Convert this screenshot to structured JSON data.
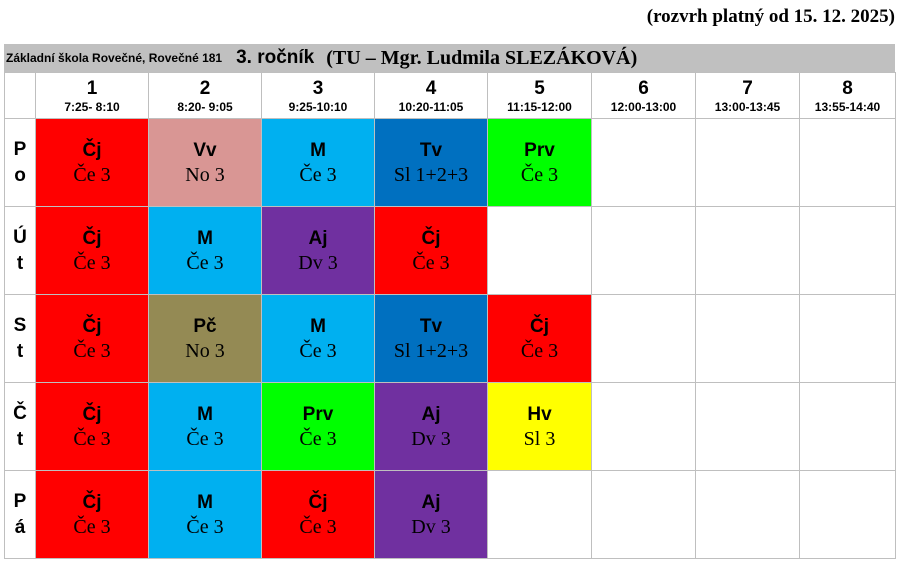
{
  "validity_note": "(rozvrh platný od 15. 12. 2025)",
  "header": {
    "school": "Základní škola Rovečné, Rovečné 181",
    "grade": "3. ročník",
    "teacher": "(TU – Mgr. Ludmila SLEZÁKOVÁ)"
  },
  "periods": [
    {
      "num": "1",
      "time": "7:25- 8:10"
    },
    {
      "num": "2",
      "time": "8:20- 9:05"
    },
    {
      "num": "3",
      "time": "9:25-10:10"
    },
    {
      "num": "4",
      "time": "10:20-11:05"
    },
    {
      "num": "5",
      "time": "11:15-12:00"
    },
    {
      "num": "6",
      "time": "12:00-13:00"
    },
    {
      "num": "7",
      "time": "13:00-13:45"
    },
    {
      "num": "8",
      "time": "13:55-14:40"
    }
  ],
  "colors": {
    "cj": "#ff0000",
    "vv": "#d99694",
    "m": "#00b0f0",
    "tv": "#0070c0",
    "prv": "#00ff00",
    "aj": "#7030a0",
    "pc": "#948a54",
    "hv": "#ffff00"
  },
  "days": [
    {
      "name": [
        "P",
        "o"
      ],
      "lessons": [
        {
          "subject": "Čj",
          "room": "Če 3",
          "color": "#ff0000"
        },
        {
          "subject": "Vv",
          "room": "No 3",
          "color": "#d99694"
        },
        {
          "subject": "M",
          "room": "Če 3",
          "color": "#00b0f0"
        },
        {
          "subject": "Tv",
          "room": "Sl 1+2+3",
          "color": "#0070c0"
        },
        {
          "subject": "Prv",
          "room": "Če 3",
          "color": "#00ff00"
        },
        null,
        null,
        null
      ]
    },
    {
      "name": [
        "Ú",
        "t"
      ],
      "lessons": [
        {
          "subject": "Čj",
          "room": "Če 3",
          "color": "#ff0000"
        },
        {
          "subject": "M",
          "room": "Če 3",
          "color": "#00b0f0"
        },
        {
          "subject": "Aj",
          "room": "Dv 3",
          "color": "#7030a0"
        },
        {
          "subject": "Čj",
          "room": "Če 3",
          "color": "#ff0000"
        },
        null,
        null,
        null,
        null
      ]
    },
    {
      "name": [
        "S",
        "t"
      ],
      "lessons": [
        {
          "subject": "Čj",
          "room": "Če 3",
          "color": "#ff0000"
        },
        {
          "subject": "Pč",
          "room": "No 3",
          "color": "#948a54"
        },
        {
          "subject": "M",
          "room": "Če 3",
          "color": "#00b0f0"
        },
        {
          "subject": "Tv",
          "room": "Sl 1+2+3",
          "color": "#0070c0"
        },
        {
          "subject": "Čj",
          "room": "Če 3",
          "color": "#ff0000"
        },
        null,
        null,
        null
      ]
    },
    {
      "name": [
        "Č",
        "t"
      ],
      "lessons": [
        {
          "subject": "Čj",
          "room": "Če 3",
          "color": "#ff0000"
        },
        {
          "subject": "M",
          "room": "Če 3",
          "color": "#00b0f0"
        },
        {
          "subject": "Prv",
          "room": "Če 3",
          "color": "#00ff00"
        },
        {
          "subject": "Aj",
          "room": "Dv 3",
          "color": "#7030a0"
        },
        {
          "subject": "Hv",
          "room": "Sl 3",
          "color": "#ffff00"
        },
        null,
        null,
        null
      ]
    },
    {
      "name": [
        "P",
        "á"
      ],
      "lessons": [
        {
          "subject": "Čj",
          "room": "Če 3",
          "color": "#ff0000"
        },
        {
          "subject": "M",
          "room": "Če 3",
          "color": "#00b0f0"
        },
        {
          "subject": "Čj",
          "room": "Če 3",
          "color": "#ff0000"
        },
        {
          "subject": "Aj",
          "room": "Dv 3",
          "color": "#7030a0"
        },
        null,
        null,
        null,
        null
      ]
    }
  ]
}
